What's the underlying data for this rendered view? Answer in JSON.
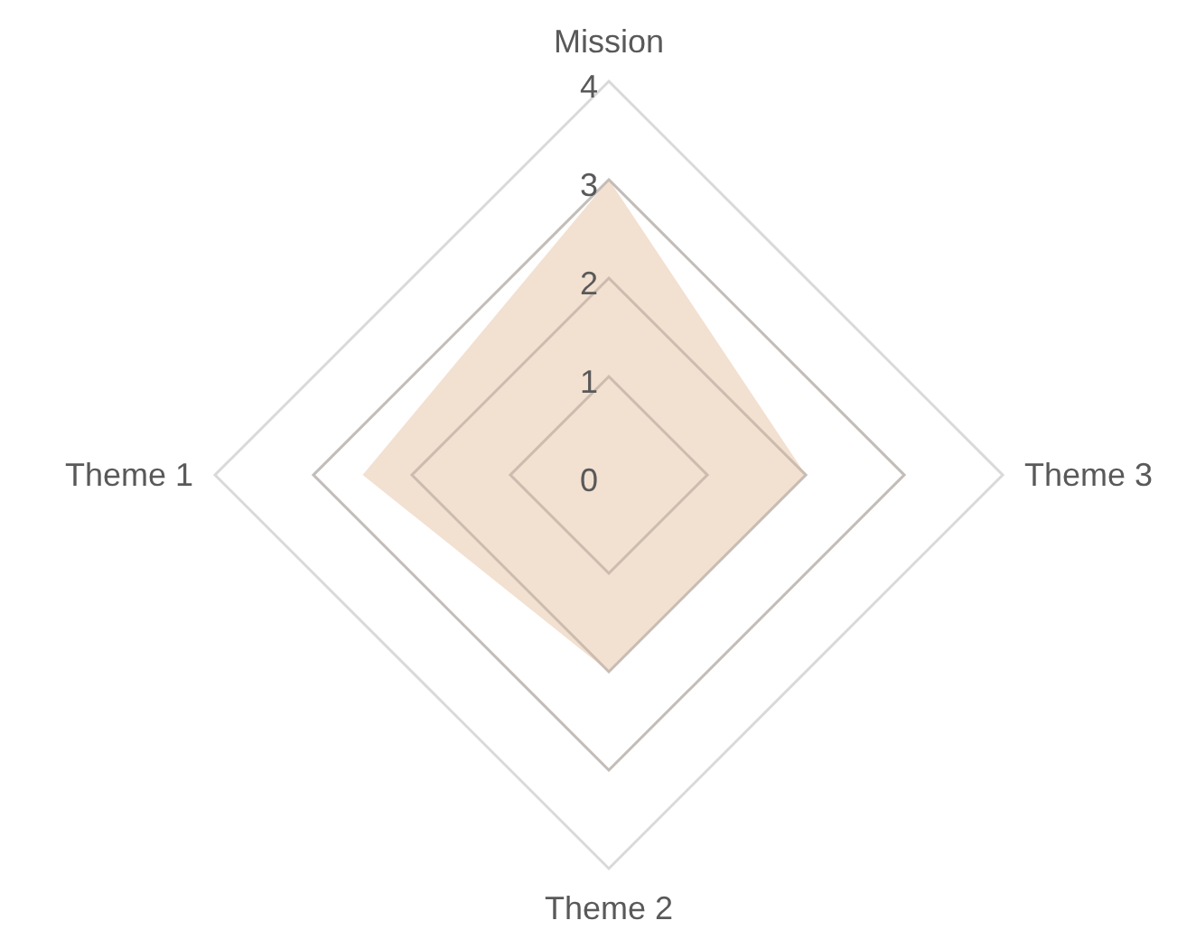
{
  "chart_data": {
    "type": "radar",
    "categories": [
      "Mission",
      "Theme 3",
      "Theme 2",
      "Theme 1"
    ],
    "series": [
      {
        "color": "#eed5c0",
        "values": [
          3,
          2,
          2,
          2.5
        ]
      }
    ],
    "ylim": [
      0,
      4
    ],
    "yticks": [
      0,
      1,
      2,
      3,
      4
    ],
    "grid": true
  }
}
